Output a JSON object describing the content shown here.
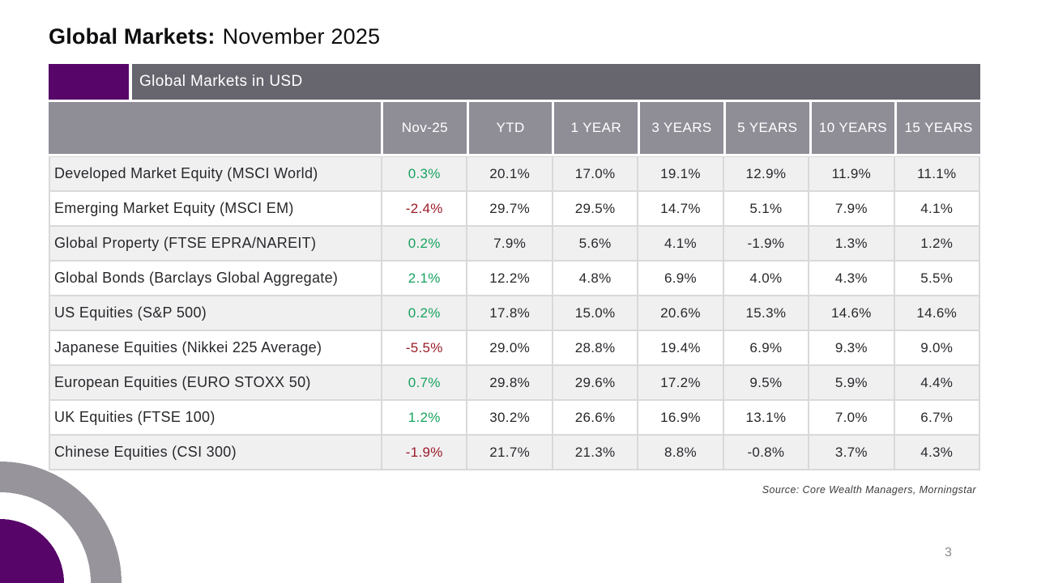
{
  "slide": {
    "title_bold": "Global Markets:",
    "title_regular": "November 2025",
    "source_note": "Source: Core Wealth Managers, Morningstar",
    "page_number": "3"
  },
  "table": {
    "title": "Global Markets in USD",
    "columns": [
      "Nov-25",
      "YTD",
      "1 YEAR",
      "3 YEARS",
      "5 YEARS",
      "10 YEARS",
      "15 YEARS"
    ],
    "rows": [
      {
        "label": "Developed Market Equity (MSCI World)",
        "values": [
          "0.3%",
          "20.1%",
          "17.0%",
          "19.1%",
          "12.9%",
          "11.9%",
          "11.1%"
        ]
      },
      {
        "label": "Emerging Market Equity (MSCI EM)",
        "values": [
          "-2.4%",
          "29.7%",
          "29.5%",
          "14.7%",
          "5.1%",
          "7.9%",
          "4.1%"
        ]
      },
      {
        "label": "Global Property (FTSE EPRA/NAREIT)",
        "values": [
          "0.2%",
          "7.9%",
          "5.6%",
          "4.1%",
          "-1.9%",
          "1.3%",
          "1.2%"
        ]
      },
      {
        "label": "Global Bonds (Barclays Global Aggregate)",
        "values": [
          "2.1%",
          "12.2%",
          "4.8%",
          "6.9%",
          "4.0%",
          "4.3%",
          "5.5%"
        ]
      },
      {
        "label": "US Equities (S&P 500)",
        "values": [
          "0.2%",
          "17.8%",
          "15.0%",
          "20.6%",
          "15.3%",
          "14.6%",
          "14.6%"
        ]
      },
      {
        "label": "Japanese Equities (Nikkei 225 Average)",
        "values": [
          "-5.5%",
          "29.0%",
          "28.8%",
          "19.4%",
          "6.9%",
          "9.3%",
          "9.0%"
        ]
      },
      {
        "label": "European Equities (EURO STOXX 50)",
        "values": [
          "0.7%",
          "29.8%",
          "29.6%",
          "17.2%",
          "9.5%",
          "5.9%",
          "4.4%"
        ]
      },
      {
        "label": "UK Equities (FTSE 100)",
        "values": [
          "1.2%",
          "30.2%",
          "26.6%",
          "16.9%",
          "13.1%",
          "7.0%",
          "6.7%"
        ]
      },
      {
        "label": "Chinese Equities (CSI 300)",
        "values": [
          "-1.9%",
          "21.7%",
          "21.3%",
          "8.8%",
          "-0.8%",
          "3.7%",
          "4.3%"
        ]
      }
    ]
  },
  "colors": {
    "accent_purple": "#570569",
    "title_bar_gray": "#67656e",
    "header_row_gray": "#8f8d96",
    "zebra_row_gray": "#f1f0f1",
    "positive_green": "#18a35f",
    "negative_red": "#9b1b28",
    "corner_ring_gray": "#97959b"
  }
}
